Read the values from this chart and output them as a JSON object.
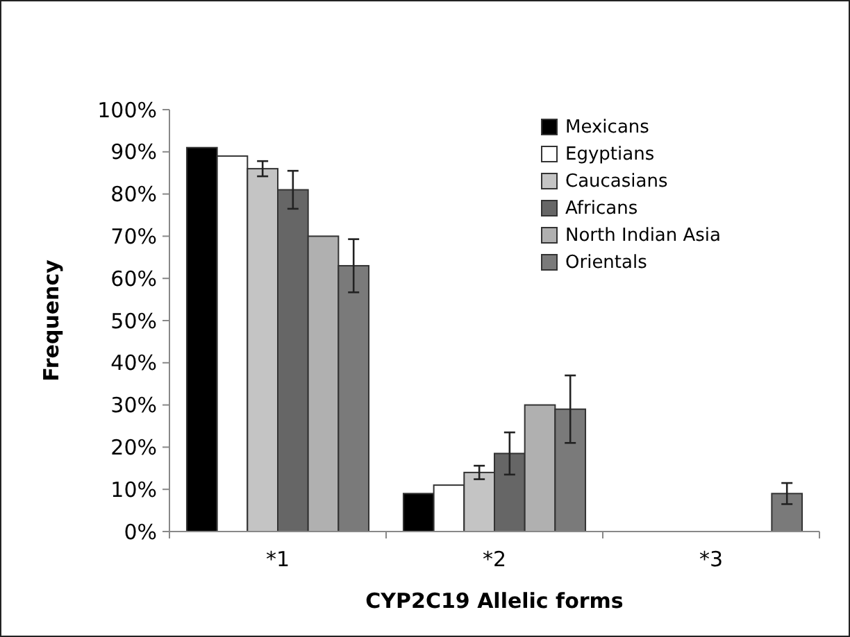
{
  "chart_data": {
    "type": "bar",
    "xlabel": "CYP2C19 Allelic forms",
    "ylabel": "Frequency",
    "categories": [
      "*1",
      "*2",
      "*3"
    ],
    "ylim": [
      0,
      1
    ],
    "yticks": [
      {
        "value": 0,
        "label": "0%"
      },
      {
        "value": 0.1,
        "label": "10%"
      },
      {
        "value": 0.2,
        "label": "20%"
      },
      {
        "value": 0.3,
        "label": "30%"
      },
      {
        "value": 0.4,
        "label": "40%"
      },
      {
        "value": 0.5,
        "label": "50%"
      },
      {
        "value": 0.6,
        "label": "60%"
      },
      {
        "value": 0.7,
        "label": "70%"
      },
      {
        "value": 0.8,
        "label": "80%"
      },
      {
        "value": 0.9,
        "label": "90%"
      },
      {
        "value": 1,
        "label": "100%"
      }
    ],
    "grid": false,
    "legend": "top right",
    "series": [
      {
        "name": "Mexicans",
        "color": "#000000",
        "values": [
          0.91,
          0.09,
          null
        ]
      },
      {
        "name": "Egyptians",
        "color": "#ffffff",
        "values": [
          0.89,
          0.11,
          null
        ]
      },
      {
        "name": "Caucasians",
        "color": "#c4c4c4",
        "values": [
          0.86,
          0.14,
          null
        ],
        "errors": [
          0.018,
          0.016,
          null
        ]
      },
      {
        "name": "Africans",
        "color": "#666666",
        "values": [
          0.81,
          0.185,
          null
        ],
        "errors": [
          0.045,
          0.05,
          null
        ]
      },
      {
        "name": "North Indian Asia",
        "color": "#b0b0b0",
        "values": [
          0.7,
          0.3,
          null
        ]
      },
      {
        "name": "Orientals",
        "color": "#7a7a7a",
        "values": [
          0.63,
          0.29,
          0.09
        ],
        "errors": [
          0.063,
          0.08,
          0.025
        ]
      }
    ]
  }
}
